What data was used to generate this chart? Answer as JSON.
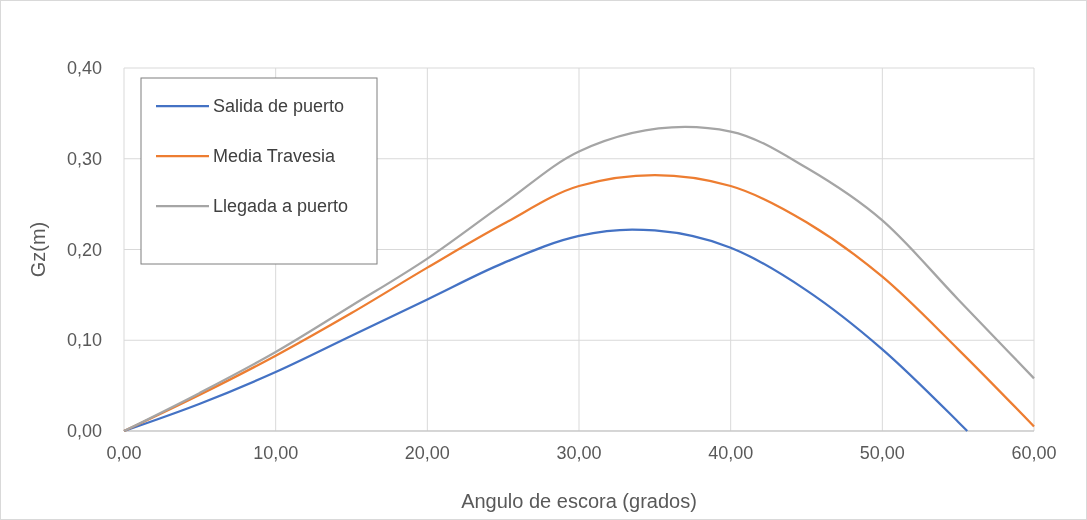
{
  "chart_data": {
    "type": "line",
    "xlabel": "Angulo de escora (grados)",
    "ylabel": "Gz(m)",
    "series": [
      {
        "name": "Salida de puerto",
        "color": "#4472c4",
        "x": [
          0,
          5,
          10,
          15,
          20,
          25,
          30,
          33.5,
          35,
          40,
          45,
          50,
          55,
          55.6
        ],
        "values": [
          0,
          0.03,
          0.065,
          0.105,
          0.145,
          0.185,
          0.215,
          0.222,
          0.221,
          0.202,
          0.155,
          0.09,
          0.01,
          0
        ]
      },
      {
        "name": "Media Travesia",
        "color": "#ed7d31",
        "x": [
          0,
          5,
          10,
          15,
          20,
          25,
          30,
          35,
          40,
          45,
          50,
          55,
          60
        ],
        "values": [
          0,
          0.04,
          0.083,
          0.13,
          0.18,
          0.228,
          0.27,
          0.282,
          0.27,
          0.23,
          0.17,
          0.09,
          0.005
        ]
      },
      {
        "name": "Llegada a puerto",
        "color": "#a5a5a5",
        "x": [
          0,
          5,
          10,
          15,
          20,
          25,
          30,
          37,
          40,
          45,
          50,
          55,
          60
        ],
        "values": [
          0,
          0.042,
          0.087,
          0.138,
          0.19,
          0.25,
          0.308,
          0.335,
          0.33,
          0.29,
          0.232,
          0.145,
          0.058
        ]
      }
    ],
    "xlim": [
      0,
      60
    ],
    "xticks": [
      {
        "value": 0,
        "label": "0,00"
      },
      {
        "value": 10,
        "label": "10,00"
      },
      {
        "value": 20,
        "label": "20,00"
      },
      {
        "value": 30,
        "label": "30,00"
      },
      {
        "value": 40,
        "label": "40,00"
      },
      {
        "value": 50,
        "label": "50,00"
      },
      {
        "value": 60,
        "label": "60,00"
      }
    ],
    "ylim": [
      0,
      0.4
    ],
    "yticks": [
      {
        "value": 0,
        "label": "0,00"
      },
      {
        "value": 0.1,
        "label": "0,10"
      },
      {
        "value": 0.2,
        "label": "0,20"
      },
      {
        "value": 0.3,
        "label": "0,30"
      },
      {
        "value": 0.4,
        "label": "0,40"
      }
    ],
    "grid": true,
    "legend": "top left",
    "marker": "none",
    "line_style": "solid"
  }
}
